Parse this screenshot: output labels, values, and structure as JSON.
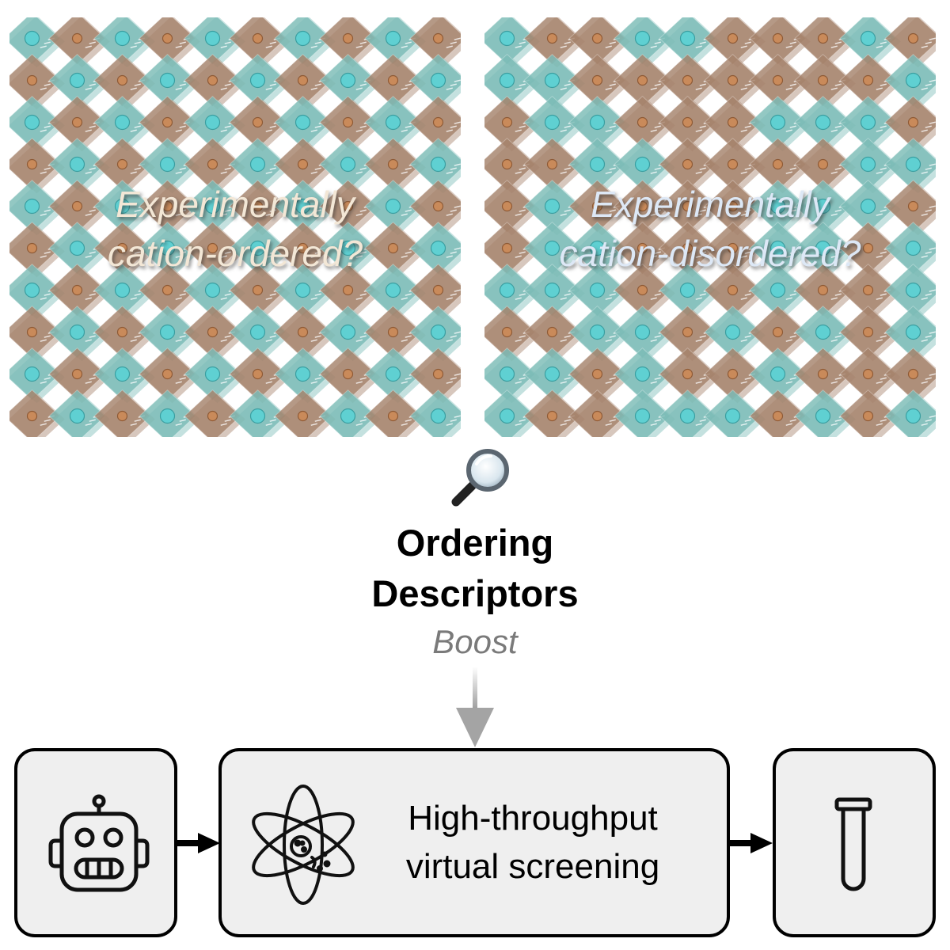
{
  "lattices": {
    "ordered": {
      "caption": "Experimentally\ncation-ordered?"
    },
    "disordered": {
      "caption": "Experimentally\ncation-disordered?"
    }
  },
  "descriptors": {
    "title": "Ordering\nDescriptors",
    "boost_label": "Boost"
  },
  "pipeline": {
    "screening_label": "High-throughput\nvirtual screening",
    "steps": [
      "robot-icon",
      "atom-icon",
      "test-tube-icon"
    ]
  },
  "colors": {
    "teal": "#7cbcb7",
    "brown": "#a6836c",
    "boost_gray": "#7a7a7a",
    "box_fill": "#efefef"
  }
}
